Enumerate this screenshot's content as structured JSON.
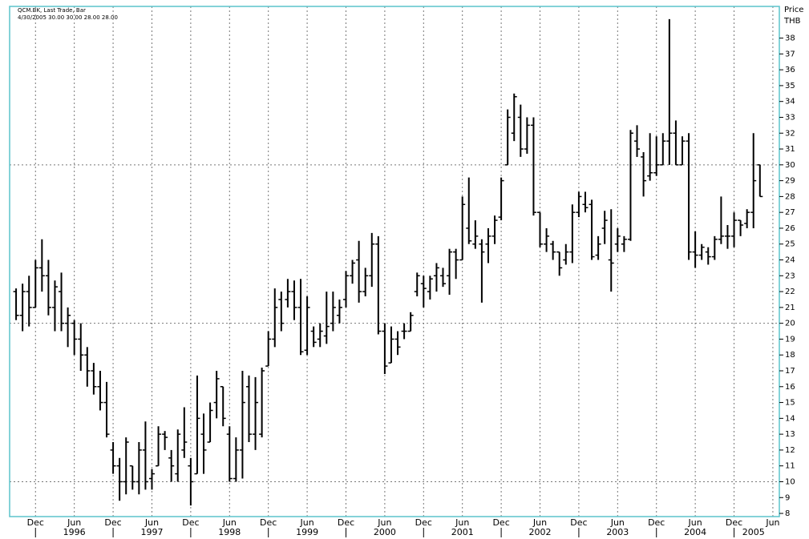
{
  "chart_data": {
    "type": "ohlc",
    "title": "QCM.BK, Last Trade, Bar",
    "subtitle": "4/30/2005 30.00 30.00 28.00 28.00",
    "y_label": "Price",
    "y_unit": "THB",
    "color": "#000000",
    "x": [
      "1995-09",
      "1995-10",
      "1995-11",
      "1995-12",
      "1996-01",
      "1996-02",
      "1996-03",
      "1996-04",
      "1996-05",
      "1996-06",
      "1996-07",
      "1996-08",
      "1996-09",
      "1996-10",
      "1996-11",
      "1996-12",
      "1997-01",
      "1997-02",
      "1997-03",
      "1997-04",
      "1997-05",
      "1997-06",
      "1997-07",
      "1997-08",
      "1997-09",
      "1997-10",
      "1997-11",
      "1997-12",
      "1998-01",
      "1998-02",
      "1998-03",
      "1998-04",
      "1998-05",
      "1998-06",
      "1998-07",
      "1998-08",
      "1998-09",
      "1998-10",
      "1998-11",
      "1998-12",
      "1999-01",
      "1999-02",
      "1999-03",
      "1999-04",
      "1999-05",
      "1999-06",
      "1999-07",
      "1999-08",
      "1999-09",
      "1999-10",
      "1999-11",
      "1999-12",
      "2000-01",
      "2000-02",
      "2000-03",
      "2000-04",
      "2000-05",
      "2000-06",
      "2000-07",
      "2000-08",
      "2000-09",
      "2000-10",
      "2000-11",
      "2000-12",
      "2001-01",
      "2001-02",
      "2001-03",
      "2001-04",
      "2001-05",
      "2001-06",
      "2001-07",
      "2001-08",
      "2001-09",
      "2001-10",
      "2001-11",
      "2001-12",
      "2002-01",
      "2002-02",
      "2002-03",
      "2002-04",
      "2002-05",
      "2002-06",
      "2002-07",
      "2002-08",
      "2002-09",
      "2002-10",
      "2002-11",
      "2002-12",
      "2003-01",
      "2003-02",
      "2003-03",
      "2003-04",
      "2003-05",
      "2003-06",
      "2003-07",
      "2003-08",
      "2003-09",
      "2003-10",
      "2003-11",
      "2003-12",
      "2004-01",
      "2004-02",
      "2004-03",
      "2004-04",
      "2004-05",
      "2004-06",
      "2004-07",
      "2004-08",
      "2004-09",
      "2004-10",
      "2004-11",
      "2004-12",
      "2005-01",
      "2005-02",
      "2005-03",
      "2005-04"
    ],
    "open": [
      22,
      20.5,
      22,
      21,
      23.5,
      23,
      21,
      22,
      20,
      20,
      19,
      18,
      17,
      16,
      15,
      12,
      11,
      10,
      11,
      10,
      12,
      10.2,
      11,
      13,
      11.5,
      10.5,
      12,
      11,
      10.5,
      13,
      12.5,
      15,
      16,
      13,
      10.2,
      12,
      16,
      13,
      13,
      17.3,
      19,
      21.5,
      21.5,
      22,
      21,
      18.3,
      19.5,
      19,
      19.2,
      20,
      20.5,
      21.5,
      23,
      24,
      22,
      23,
      25,
      19.5,
      17.5,
      19,
      19.5,
      19.5,
      22,
      22.5,
      22,
      23,
      23,
      23,
      24.5,
      24,
      26,
      25,
      25,
      25,
      25.5,
      26.7,
      30,
      32,
      33,
      31,
      32.5,
      27,
      25,
      25,
      24.5,
      24,
      24.5,
      27,
      27.5,
      27.5,
      24.3,
      26,
      24,
      25,
      25,
      25.3,
      31.5,
      30.5,
      29.3,
      29.5,
      30,
      31.5,
      32,
      30,
      31.5,
      24.5,
      24.3,
      24.5,
      24.2,
      25.3,
      25.5,
      25.5,
      26.5,
      26.3,
      27,
      30
    ],
    "high": [
      22.2,
      22.5,
      23,
      24,
      25.3,
      24,
      22.7,
      23.2,
      21,
      20.2,
      20,
      18.5,
      17.5,
      17,
      16.3,
      12.5,
      11.5,
      12.8,
      11,
      12.5,
      13.8,
      10.8,
      13.5,
      13.2,
      12,
      13.3,
      14.7,
      11.5,
      16.7,
      14.3,
      15,
      17,
      16,
      13.5,
      12.8,
      17,
      16.7,
      16.6,
      17.2,
      19.5,
      22.2,
      22,
      22.8,
      22.7,
      22.8,
      21.7,
      19.8,
      20,
      22,
      22,
      21.5,
      23.3,
      24,
      25.2,
      23.5,
      25.7,
      25.5,
      20,
      19.8,
      19.5,
      20,
      20.7,
      23.2,
      23,
      23,
      23.8,
      23.5,
      24.7,
      24.7,
      28,
      29.2,
      26.5,
      25.3,
      26,
      26.8,
      29.2,
      33.5,
      34.5,
      33.8,
      33,
      33,
      27,
      26,
      25.2,
      24.5,
      25,
      27.5,
      28.3,
      28.3,
      27.8,
      25.5,
      27.1,
      27.2,
      26,
      25.5,
      32.2,
      32.5,
      30.8,
      32,
      31.8,
      32,
      39.2,
      32.8,
      31.8,
      32,
      25.8,
      25,
      24.8,
      25.5,
      28,
      26.2,
      27,
      26.5,
      27.2,
      32,
      30
    ],
    "low": [
      20.2,
      19.5,
      19.8,
      21,
      22,
      20.5,
      19.5,
      19.5,
      18.5,
      18,
      17,
      16,
      15.5,
      14.5,
      12.8,
      10.5,
      8.8,
      9.2,
      9.5,
      9.2,
      9.5,
      9.5,
      11,
      12,
      10,
      10,
      11.5,
      8.5,
      10.5,
      10.5,
      12.5,
      14,
      13.5,
      10,
      10,
      10.2,
      12.5,
      12,
      12.8,
      17.3,
      18.5,
      19.5,
      21,
      20.2,
      18,
      18,
      18.5,
      18.5,
      18.7,
      19.5,
      20,
      21,
      22.5,
      21.3,
      21.7,
      22.3,
      19.3,
      16.8,
      17.5,
      18,
      19,
      19.5,
      21.7,
      21,
      21.5,
      22,
      22.3,
      21.8,
      22.8,
      24,
      25,
      24.7,
      21.3,
      23.8,
      25,
      26.5,
      30,
      31.5,
      30.5,
      30.7,
      26.8,
      24.8,
      24.5,
      24,
      23,
      23.7,
      23.8,
      26.7,
      27,
      24,
      24,
      25,
      22,
      24.5,
      24.5,
      25.2,
      30.5,
      28,
      29,
      29.3,
      30,
      30,
      30,
      30,
      24,
      23.5,
      24,
      23.7,
      24,
      25,
      24.7,
      24.8,
      25.5,
      26,
      26,
      28
    ],
    "close": [
      20.5,
      22,
      21,
      23.5,
      23,
      21,
      22.3,
      20,
      20.5,
      19,
      18,
      17,
      16,
      15,
      13,
      11,
      10,
      12.5,
      10,
      12,
      10,
      10.5,
      13,
      12.8,
      11,
      13,
      12.5,
      10,
      14,
      12,
      14.5,
      16.5,
      14,
      10.2,
      12,
      15,
      13,
      15,
      17,
      19,
      21,
      20,
      22,
      21,
      18.2,
      21,
      18.8,
      19.5,
      19.8,
      21,
      21,
      23,
      23.8,
      22,
      23,
      25,
      19.5,
      17.3,
      19,
      18.5,
      19.5,
      20.5,
      23,
      22.2,
      22.8,
      23.5,
      22.5,
      24.5,
      24,
      27.5,
      25.2,
      25.5,
      24.5,
      25.5,
      26.5,
      29,
      33,
      34.3,
      31,
      32.5,
      27,
      25,
      25.5,
      24.5,
      23.5,
      24.5,
      27,
      28,
      27.3,
      24.2,
      25,
      26.5,
      23.8,
      25.5,
      25.3,
      32,
      31,
      29,
      29.5,
      30,
      31.5,
      32,
      30,
      31.5,
      24.5,
      24.3,
      24.8,
      24.2,
      25.3,
      25.5,
      25.5,
      26.5,
      26.2,
      27,
      29,
      28
    ],
    "xlim": [
      "1995-08",
      "2005-07"
    ],
    "xticks": [
      {
        "value": "1995-12",
        "label": "Dec"
      },
      {
        "value": "1996-06",
        "label": "Jun"
      },
      {
        "value": "1996-12",
        "label": "Dec"
      },
      {
        "value": "1997-06",
        "label": "Jun"
      },
      {
        "value": "1997-12",
        "label": "Dec"
      },
      {
        "value": "1998-06",
        "label": "Jun"
      },
      {
        "value": "1998-12",
        "label": "Dec"
      },
      {
        "value": "1999-06",
        "label": "Jun"
      },
      {
        "value": "1999-12",
        "label": "Dec"
      },
      {
        "value": "2000-06",
        "label": "Jun"
      },
      {
        "value": "2000-12",
        "label": "Dec"
      },
      {
        "value": "2001-06",
        "label": "Jun"
      },
      {
        "value": "2001-12",
        "label": "Dec"
      },
      {
        "value": "2002-06",
        "label": "Jun"
      },
      {
        "value": "2002-12",
        "label": "Dec"
      },
      {
        "value": "2003-06",
        "label": "Jun"
      },
      {
        "value": "2003-12",
        "label": "Dec"
      },
      {
        "value": "2004-06",
        "label": "Jun"
      },
      {
        "value": "2004-12",
        "label": "Dec"
      },
      {
        "value": "2005-06",
        "label": "Jun"
      }
    ],
    "year_labels": [
      {
        "value": "1996-06",
        "label": "1996"
      },
      {
        "value": "1997-06",
        "label": "1997"
      },
      {
        "value": "1998-06",
        "label": "1998"
      },
      {
        "value": "1999-06",
        "label": "1999"
      },
      {
        "value": "2000-06",
        "label": "2000"
      },
      {
        "value": "2001-06",
        "label": "2001"
      },
      {
        "value": "2002-06",
        "label": "2002"
      },
      {
        "value": "2003-06",
        "label": "2003"
      },
      {
        "value": "2004-06",
        "label": "2004"
      },
      {
        "value": "2005-03",
        "label": "2005"
      }
    ],
    "ylim": [
      7.8,
      40
    ],
    "yticks": [
      8,
      9,
      10,
      11,
      12,
      13,
      14,
      15,
      16,
      17,
      18,
      19,
      20,
      21,
      22,
      23,
      24,
      25,
      26,
      27,
      28,
      29,
      30,
      31,
      32,
      33,
      34,
      35,
      36,
      37,
      38
    ],
    "y_grid": [
      10,
      20,
      30
    ],
    "x_grid": true
  }
}
